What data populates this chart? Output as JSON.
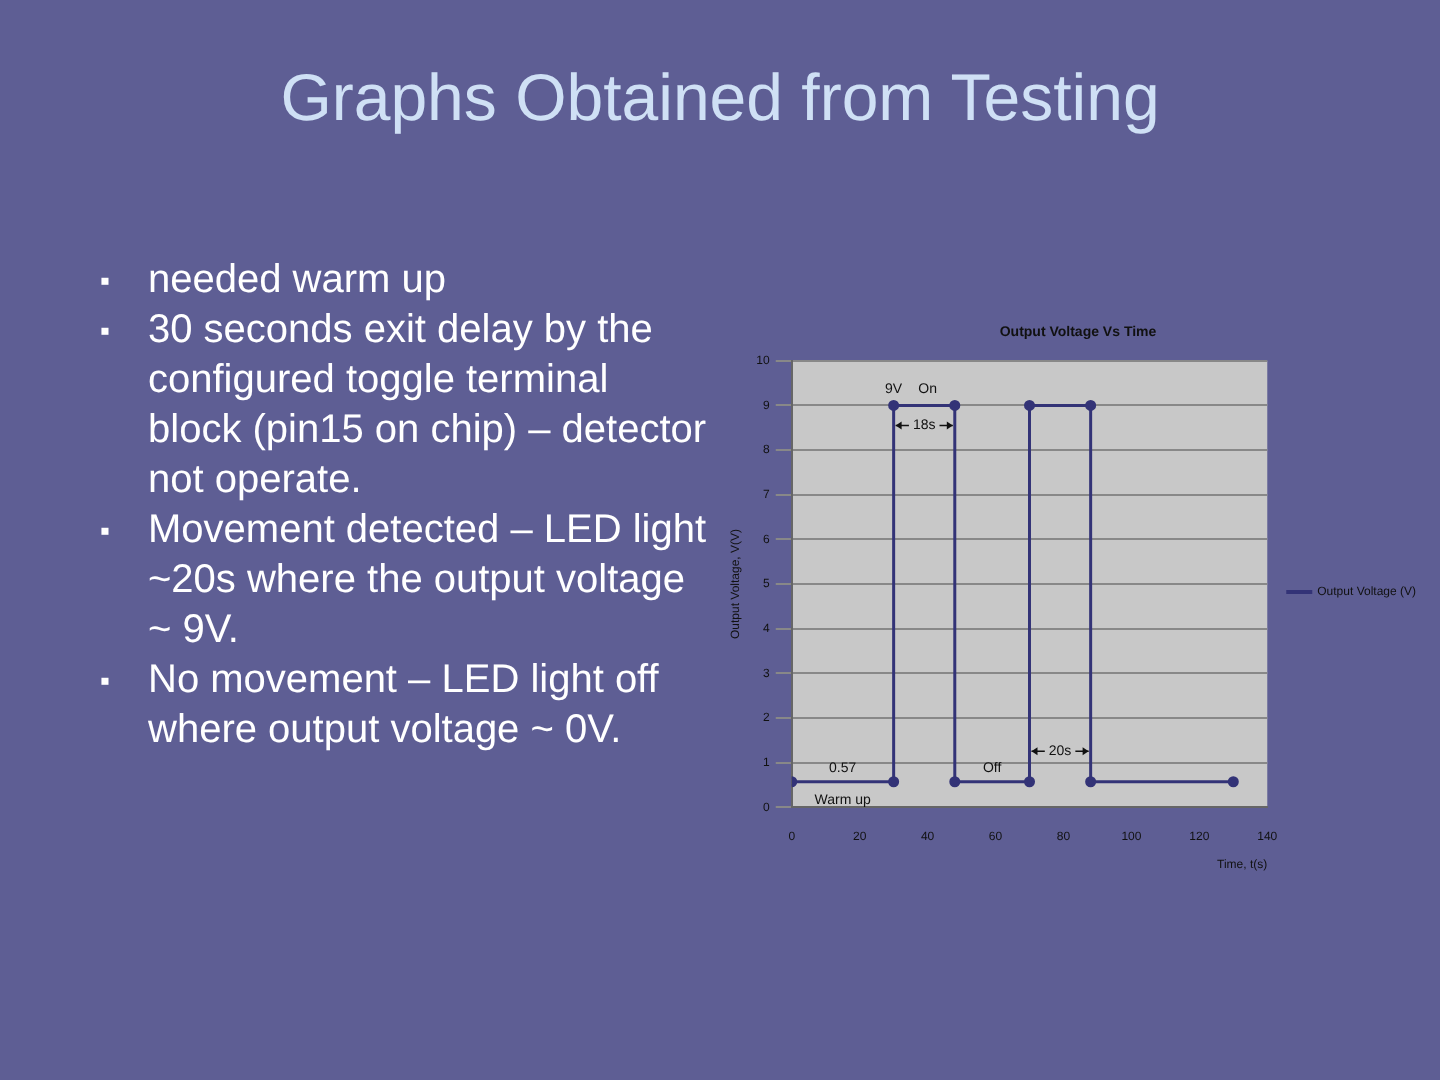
{
  "chart_data": {
    "type": "line",
    "title": "Output Voltage Vs Time",
    "xlabel": "Time, t(s)",
    "ylabel": "Output Voltage, V(V)",
    "x": [
      0,
      30,
      30,
      48,
      48,
      70,
      70,
      88,
      88,
      130
    ],
    "series": [
      {
        "name": "Output Voltage (V)",
        "color": "#333377",
        "values": [
          0.57,
          0.57,
          9,
          9,
          0.57,
          0.57,
          9,
          9,
          0.57,
          0.57
        ]
      }
    ],
    "xlim": [
      0,
      140
    ],
    "xticks": [
      0,
      20,
      40,
      60,
      80,
      100,
      120,
      140
    ],
    "ylim": [
      0,
      10
    ],
    "yticks": [
      0,
      1,
      2,
      3,
      4,
      5,
      6,
      7,
      8,
      9,
      10
    ],
    "grid": "y",
    "legend": "right",
    "marker": "circle",
    "line_style": "solid",
    "annotations": [
      "Graphs Obtained from Testing",
      "▪ needed warm up",
      "▪ 30 seconds exit delay by the configured toggle terminal block (pin15 on chip) – detector not operate.",
      "▪ Movement detected – LED light ~20s where the output voltage ~ 9V.",
      "▪ No movement – LED light off where output voltage ~ 0V.",
      {
        "text": "9V",
        "x": 30,
        "y": 9
      },
      {
        "text": "On",
        "x": 40,
        "y": 9
      },
      {
        "text": "0.57",
        "x": 15,
        "y": 0.57
      },
      {
        "text": "Warm up",
        "x": 15,
        "y": 0.57
      },
      {
        "text": "Off",
        "x": 59,
        "y": 0.57
      },
      "18s",
      "20s"
    ]
  }
}
